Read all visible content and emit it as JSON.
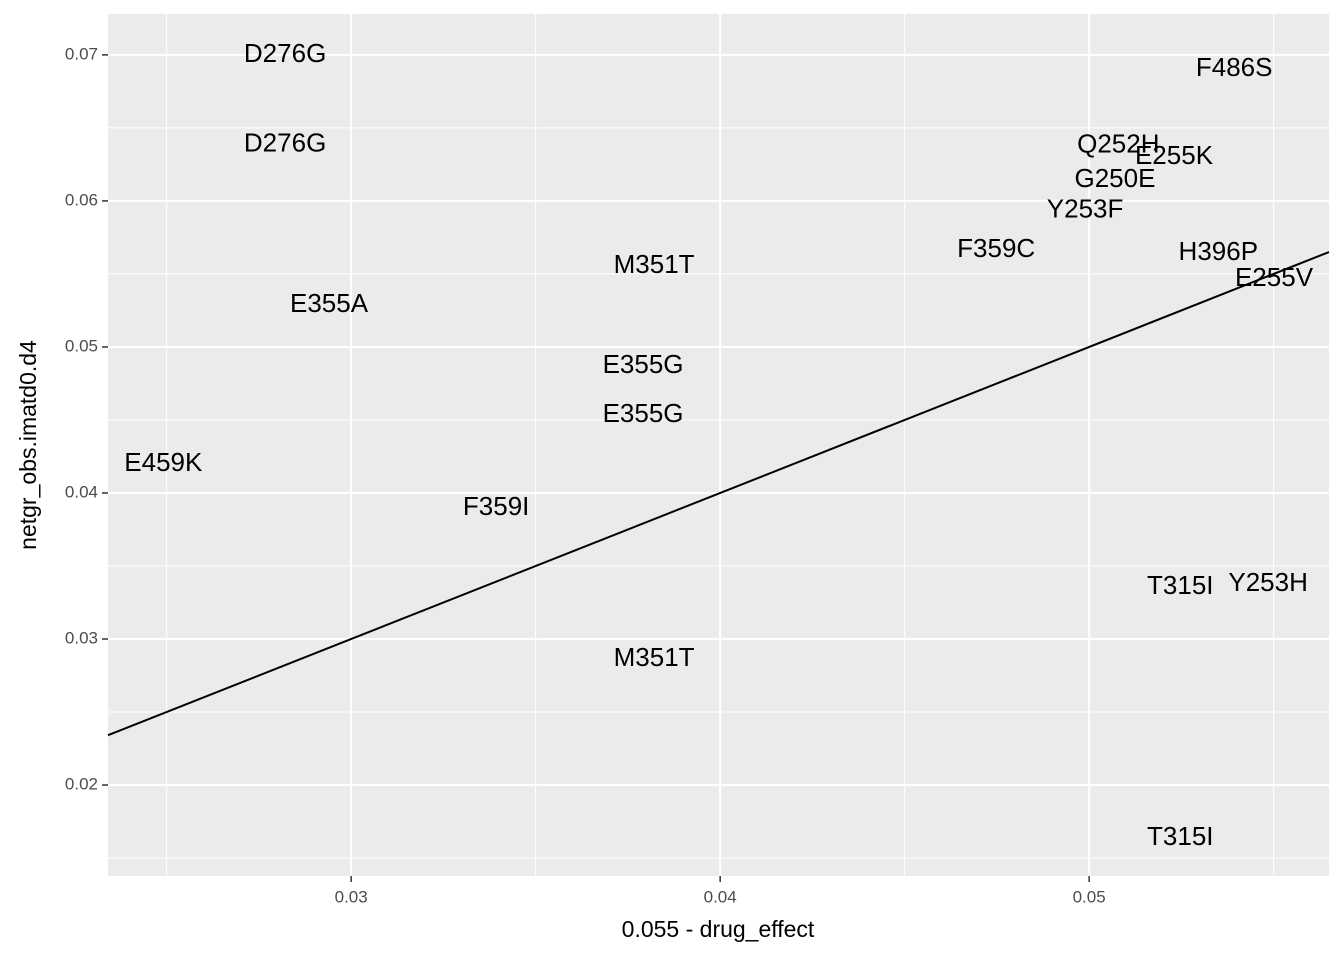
{
  "chart_data": {
    "type": "scatter",
    "x_label": "0.055 - drug_effect",
    "y_label": "netgr_obs.imatd0.d4",
    "points": {
      "labels": [
        "D276G",
        "D276G",
        "F486S",
        "Q252H",
        "E255K",
        "G250E",
        "Y253F",
        "F359C",
        "H396P",
        "E255V",
        "M351T",
        "E355A",
        "E355G",
        "E355G",
        "E459K",
        "F359I",
        "T315I",
        "Y253H",
        "M351T",
        "T315I"
      ],
      "x": [
        0.02821,
        0.02821,
        0.05393,
        0.05079,
        0.0523,
        0.0507,
        0.04989,
        0.04748,
        0.0535,
        0.05501,
        0.03821,
        0.0294,
        0.03791,
        0.03791,
        0.02491,
        0.03393,
        0.05247,
        0.05485,
        0.03821,
        0.05247
      ],
      "y": [
        0.07,
        0.06384,
        0.06904,
        0.06377,
        0.06301,
        0.06144,
        0.05932,
        0.05664,
        0.05644,
        0.05466,
        0.05555,
        0.05288,
        0.0487,
        0.04534,
        0.04199,
        0.03897,
        0.03356,
        0.03377,
        0.02863,
        0.01637
      ],
      "color": "#000000"
    },
    "reference_line": {
      "slope": 1,
      "intercept": 0,
      "color": "#000000"
    },
    "xlim": [
      0.02341,
      0.0565
    ],
    "ylim": [
      0.01377,
      0.0728
    ],
    "xticks": [
      0.03,
      0.04,
      0.05
    ],
    "yticks": [
      0.02,
      0.03,
      0.04,
      0.05,
      0.06,
      0.07
    ],
    "x_minor_ticks": [
      0.025,
      0.035,
      0.045,
      0.055
    ],
    "y_minor_ticks": [
      0.015,
      0.025,
      0.035,
      0.045,
      0.055,
      0.065
    ],
    "grid": true
  }
}
